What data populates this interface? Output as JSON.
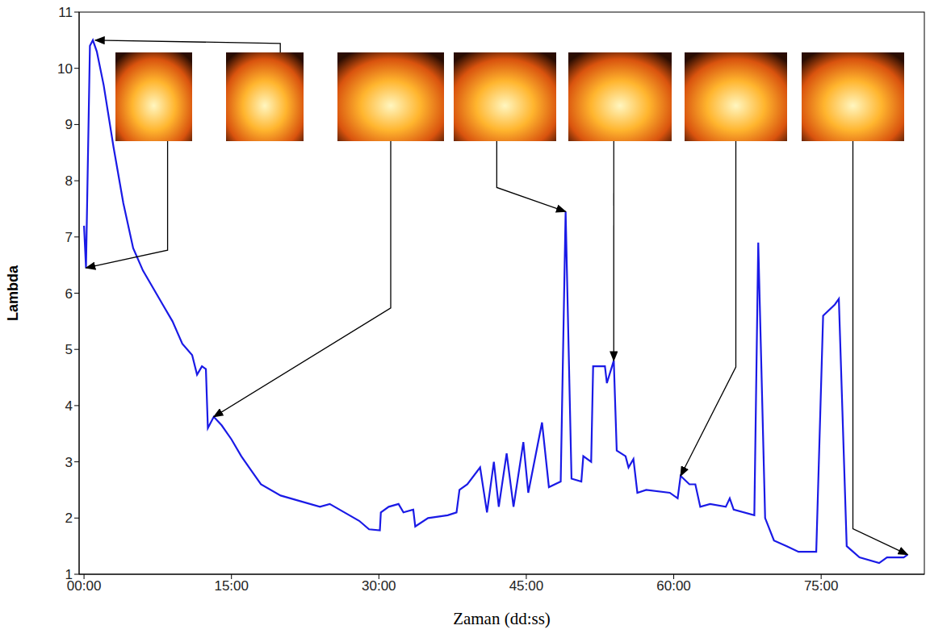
{
  "chart_data": {
    "type": "line",
    "x_label": "Zaman (dd:ss)",
    "y_label": "Lambda",
    "color": "#1a1ae6",
    "xlim": [
      -0.5,
      85.5
    ],
    "ylim": [
      1,
      11
    ],
    "xticks": [
      {
        "value": 0,
        "label": "00:00"
      },
      {
        "value": 15,
        "label": "15:00"
      },
      {
        "value": 30,
        "label": "30:00"
      },
      {
        "value": 45,
        "label": "45:00"
      },
      {
        "value": 60,
        "label": "60:00"
      },
      {
        "value": 75,
        "label": "75:00"
      }
    ],
    "yticks": [
      1,
      2,
      3,
      4,
      5,
      6,
      7,
      8,
      9,
      10,
      11
    ],
    "grid": false,
    "x": [
      0.0,
      0.2,
      0.6,
      0.9,
      1.3,
      2,
      3,
      4,
      5,
      6,
      7,
      8,
      9,
      10,
      11,
      11.5,
      12.0,
      12.4,
      12.6,
      13.2,
      14,
      15,
      16,
      17,
      18,
      20,
      22,
      24,
      25,
      26,
      28,
      29,
      30.1,
      30.2,
      31,
      32,
      32.5,
      33.5,
      33.7,
      35,
      37,
      37.9,
      38.2,
      39,
      40.3,
      41,
      41.7,
      42.2,
      43,
      43.7,
      44.7,
      45.2,
      46.6,
      47.3,
      48.5,
      49,
      49.6,
      50.6,
      50.8,
      51.6,
      51.8,
      53,
      53.2,
      53.9,
      54.2,
      55.1,
      55.4,
      55.9,
      56.3,
      57.2,
      59.6,
      60.4,
      60.7,
      61.6,
      62.2,
      62.7,
      63.7,
      65.3,
      65.7,
      66.1,
      68.2,
      68.6,
      69.3,
      70.2,
      71.5,
      72.7,
      74.5,
      75.2,
      76.4,
      76.8,
      77.6,
      78.9,
      80.9,
      81.7,
      83.4,
      83.8
    ],
    "values": [
      7.2,
      6.45,
      10.4,
      10.5,
      10.3,
      9.7,
      8.6,
      7.6,
      6.8,
      6.4,
      6.1,
      5.8,
      5.5,
      5.1,
      4.9,
      4.55,
      4.7,
      4.65,
      3.6,
      3.8,
      3.65,
      3.4,
      3.1,
      2.85,
      2.6,
      2.4,
      2.3,
      2.2,
      2.25,
      2.15,
      1.95,
      1.8,
      1.78,
      2.1,
      2.2,
      2.25,
      2.1,
      2.15,
      1.85,
      2.0,
      2.05,
      2.1,
      2.5,
      2.6,
      2.9,
      2.1,
      3.0,
      2.2,
      3.15,
      2.2,
      3.35,
      2.45,
      3.7,
      2.55,
      2.65,
      7.45,
      2.7,
      2.65,
      3.1,
      3.0,
      4.7,
      4.7,
      4.4,
      4.8,
      3.2,
      3.1,
      2.9,
      3.05,
      2.45,
      2.5,
      2.45,
      2.35,
      2.75,
      2.6,
      2.6,
      2.2,
      2.25,
      2.2,
      2.35,
      2.15,
      2.05,
      6.9,
      2.0,
      1.6,
      1.5,
      1.4,
      1.4,
      5.6,
      5.8,
      5.9,
      1.5,
      1.3,
      1.2,
      1.3,
      1.3,
      1.35
    ],
    "annotations": [
      {
        "x": 0.2,
        "y": 6.45
      },
      {
        "x": 0.9,
        "y": 10.5
      },
      {
        "x": 13.2,
        "y": 3.8
      },
      {
        "x": 49,
        "y": 7.45
      },
      {
        "x": 53.9,
        "y": 4.8
      },
      {
        "x": 60.7,
        "y": 2.75
      },
      {
        "x": 83.8,
        "y": 1.35
      }
    ]
  }
}
